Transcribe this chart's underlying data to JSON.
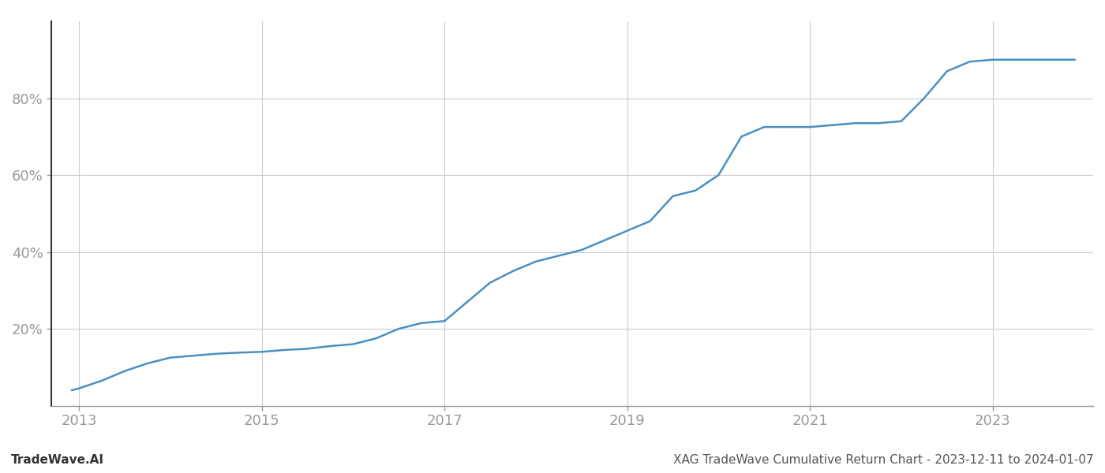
{
  "title": "XAG TradeWave Cumulative Return Chart - 2023-12-11 to 2024-01-07",
  "watermark": "TradeWave.AI",
  "line_color": "#4a90c4",
  "background_color": "#ffffff",
  "grid_color": "#cccccc",
  "x_years": [
    2012.92,
    2013.0,
    2013.25,
    2013.5,
    2013.75,
    2014.0,
    2014.25,
    2014.5,
    2014.75,
    2015.0,
    2015.25,
    2015.5,
    2015.75,
    2016.0,
    2016.25,
    2016.5,
    2016.75,
    2017.0,
    2017.25,
    2017.5,
    2017.75,
    2018.0,
    2018.25,
    2018.5,
    2018.75,
    2019.0,
    2019.25,
    2019.5,
    2019.75,
    2020.0,
    2020.25,
    2020.5,
    2020.75,
    2021.0,
    2021.25,
    2021.5,
    2021.75,
    2022.0,
    2022.25,
    2022.5,
    2022.75,
    2023.0,
    2023.9
  ],
  "y_values": [
    4.0,
    4.5,
    6.5,
    9.0,
    11.0,
    12.5,
    13.0,
    13.5,
    13.8,
    14.0,
    14.5,
    14.8,
    15.5,
    16.0,
    17.5,
    20.0,
    21.5,
    22.0,
    27.0,
    32.0,
    35.0,
    37.5,
    39.0,
    40.5,
    43.0,
    45.5,
    48.0,
    54.5,
    56.0,
    60.0,
    70.0,
    72.5,
    72.5,
    72.5,
    73.0,
    73.5,
    73.5,
    74.0,
    80.0,
    87.0,
    89.5,
    90.0,
    90.0
  ],
  "xlim": [
    2012.7,
    2024.1
  ],
  "ylim": [
    0,
    100
  ],
  "yticks": [
    20,
    40,
    60,
    80
  ],
  "xticks": [
    2013,
    2015,
    2017,
    2019,
    2021,
    2023
  ],
  "tick_label_color": "#999999",
  "tick_fontsize": 13,
  "footer_fontsize": 11,
  "line_width": 1.8,
  "left_spine_color": "#333333",
  "bottom_spine_color": "#999999"
}
